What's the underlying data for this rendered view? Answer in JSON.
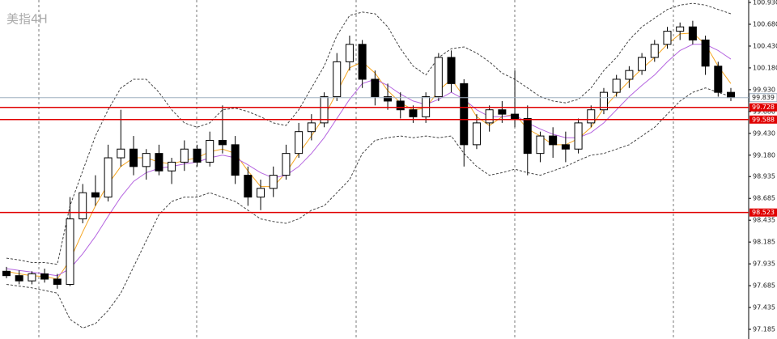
{
  "chart_data": {
    "type": "candlestick",
    "title": "美指4H",
    "ylim": [
      97.074,
      100.958
    ],
    "yticks": [
      {
        "value": 100.93,
        "label": "100.930"
      },
      {
        "value": 100.68,
        "label": "100.680"
      },
      {
        "value": 100.43,
        "label": "100.430"
      },
      {
        "value": 100.18,
        "label": "100.180"
      },
      {
        "value": 99.93,
        "label": "99.930"
      },
      {
        "value": 99.68,
        "label": "99.680"
      },
      {
        "value": 99.43,
        "label": "99.430"
      },
      {
        "value": 99.18,
        "label": "99.180"
      },
      98.935,
      98.685,
      98.435,
      98.185,
      97.935,
      97.685,
      97.435,
      97.185
    ],
    "up_color": "#ffffff",
    "down_color": "#000000",
    "open": [
      97.85,
      97.8,
      97.74,
      97.82,
      97.76,
      97.7,
      98.45,
      98.75,
      98.7,
      99.15,
      99.25,
      99.05,
      99.2,
      99.0,
      99.1,
      99.25,
      99.1,
      99.35,
      99.3,
      98.95,
      98.7,
      98.8,
      98.95,
      99.2,
      99.45,
      99.55,
      99.85,
      100.25,
      100.45,
      100.05,
      99.85,
      99.8,
      99.7,
      99.62,
      99.85,
      100.3,
      100.0,
      99.3,
      99.55,
      99.7,
      99.65,
      99.6,
      99.2,
      99.4,
      99.3,
      99.25,
      99.55,
      99.7,
      99.9,
      100.05,
      100.15,
      100.3,
      100.45,
      100.6,
      100.65,
      100.5,
      100.2,
      99.9
    ],
    "high": [
      97.9,
      97.86,
      97.85,
      97.88,
      97.82,
      98.7,
      98.85,
      98.95,
      99.3,
      99.7,
      99.4,
      99.25,
      99.3,
      99.15,
      99.35,
      99.3,
      99.45,
      99.75,
      99.4,
      99.05,
      98.9,
      99.05,
      99.3,
      99.55,
      99.65,
      99.9,
      100.35,
      100.55,
      100.5,
      100.15,
      100.0,
      99.9,
      99.75,
      99.9,
      100.35,
      100.38,
      100.05,
      99.65,
      99.75,
      99.8,
      100.15,
      99.75,
      99.45,
      99.5,
      99.45,
      99.6,
      99.75,
      99.95,
      100.1,
      100.2,
      100.35,
      100.5,
      100.65,
      100.7,
      100.72,
      100.55,
      100.25,
      99.95
    ],
    "low": [
      97.77,
      97.7,
      97.7,
      97.72,
      97.65,
      97.68,
      98.4,
      98.6,
      98.65,
      99.05,
      98.95,
      98.9,
      98.95,
      98.85,
      99.0,
      99.05,
      99.05,
      99.2,
      98.85,
      98.6,
      98.55,
      98.7,
      98.9,
      99.15,
      99.35,
      99.5,
      99.8,
      100.15,
      99.95,
      99.75,
      99.7,
      99.6,
      99.55,
      99.55,
      99.8,
      99.9,
      99.05,
      99.25,
      99.45,
      99.55,
      99.5,
      98.95,
      99.1,
      99.15,
      99.1,
      99.2,
      99.5,
      99.65,
      99.85,
      99.95,
      100.1,
      100.25,
      100.4,
      100.5,
      100.45,
      100.1,
      99.85,
      99.8
    ],
    "close": [
      97.8,
      97.74,
      97.82,
      97.76,
      97.7,
      98.45,
      98.75,
      98.7,
      99.15,
      99.25,
      99.05,
      99.2,
      99.0,
      99.1,
      99.25,
      99.1,
      99.35,
      99.3,
      98.95,
      98.7,
      98.8,
      98.95,
      99.2,
      99.45,
      99.55,
      99.85,
      100.25,
      100.45,
      100.05,
      99.85,
      99.8,
      99.7,
      99.62,
      99.85,
      100.3,
      100.0,
      99.3,
      99.55,
      99.7,
      99.65,
      99.6,
      99.2,
      99.4,
      99.3,
      99.25,
      99.55,
      99.7,
      99.9,
      100.05,
      100.15,
      100.3,
      100.45,
      100.6,
      100.65,
      100.5,
      100.2,
      99.9,
      99.84
    ],
    "overlays": [
      {
        "color": "#f5a623",
        "dashed": false,
        "values": [
          97.85,
          97.82,
          97.8,
          97.79,
          97.76,
          97.98,
          98.3,
          98.6,
          98.85,
          99.05,
          99.15,
          99.15,
          99.1,
          99.08,
          99.12,
          99.15,
          99.22,
          99.25,
          99.2,
          99.0,
          98.82,
          98.82,
          98.98,
          99.2,
          99.4,
          99.62,
          99.9,
          100.18,
          100.25,
          100.12,
          99.92,
          99.78,
          99.7,
          99.72,
          99.92,
          100.05,
          99.85,
          99.62,
          99.52,
          99.62,
          99.65,
          99.48,
          99.4,
          99.3,
          99.3,
          99.37,
          99.5,
          99.72,
          99.88,
          100.03,
          100.17,
          100.3,
          100.45,
          100.57,
          100.58,
          100.45,
          100.2,
          100.0
        ]
      },
      {
        "color": "#b565e0",
        "dashed": false,
        "values": [
          97.88,
          97.86,
          97.84,
          97.82,
          97.8,
          97.88,
          98.05,
          98.25,
          98.48,
          98.7,
          98.88,
          98.98,
          99.03,
          99.05,
          99.08,
          99.1,
          99.15,
          99.18,
          99.15,
          99.07,
          98.98,
          98.92,
          98.95,
          99.05,
          99.2,
          99.38,
          99.6,
          99.82,
          100.0,
          100.05,
          99.98,
          99.88,
          99.8,
          99.76,
          99.82,
          99.9,
          99.82,
          99.7,
          99.62,
          99.62,
          99.64,
          99.55,
          99.48,
          99.42,
          99.38,
          99.38,
          99.44,
          99.55,
          99.7,
          99.85,
          99.98,
          100.1,
          100.25,
          100.38,
          100.45,
          100.45,
          100.38,
          100.28
        ]
      },
      {
        "color": "#444444",
        "dashed": true,
        "values": [
          98.0,
          97.98,
          97.95,
          97.95,
          97.93,
          98.6,
          99.0,
          99.4,
          99.7,
          99.95,
          100.05,
          100.05,
          99.9,
          99.7,
          99.55,
          99.5,
          99.55,
          99.7,
          99.72,
          99.68,
          99.62,
          99.55,
          99.52,
          99.7,
          99.95,
          100.2,
          100.55,
          100.78,
          100.82,
          100.8,
          100.65,
          100.4,
          100.2,
          100.1,
          100.3,
          100.4,
          100.42,
          100.35,
          100.25,
          100.12,
          100.05,
          99.95,
          99.85,
          99.8,
          99.78,
          99.82,
          99.95,
          100.15,
          100.3,
          100.5,
          100.65,
          100.75,
          100.85,
          100.9,
          100.92,
          100.9,
          100.85,
          100.8
        ]
      },
      {
        "color": "#444444",
        "dashed": true,
        "values": [
          97.7,
          97.68,
          97.66,
          97.63,
          97.6,
          97.3,
          97.2,
          97.25,
          97.4,
          97.6,
          97.9,
          98.2,
          98.5,
          98.65,
          98.7,
          98.7,
          98.75,
          98.7,
          98.65,
          98.55,
          98.45,
          98.42,
          98.4,
          98.45,
          98.55,
          98.6,
          98.75,
          98.9,
          99.2,
          99.35,
          99.38,
          99.4,
          99.38,
          99.4,
          99.38,
          99.4,
          99.2,
          99.05,
          98.95,
          98.98,
          99.02,
          98.98,
          98.95,
          99.0,
          99.05,
          99.12,
          99.18,
          99.2,
          99.25,
          99.3,
          99.4,
          99.5,
          99.65,
          99.8,
          99.9,
          99.95,
          99.9,
          99.85
        ]
      }
    ],
    "current_price": {
      "value": 99.839,
      "label": "99.839",
      "color": "#9fb0c0"
    },
    "levels": [
      {
        "value": 99.728,
        "label": "99.728",
        "color": "#e00000"
      },
      {
        "value": 99.588,
        "label": "99.588",
        "color": "#e00000"
      },
      {
        "value": 98.523,
        "label": "98.523",
        "color": "#e00000"
      }
    ]
  }
}
